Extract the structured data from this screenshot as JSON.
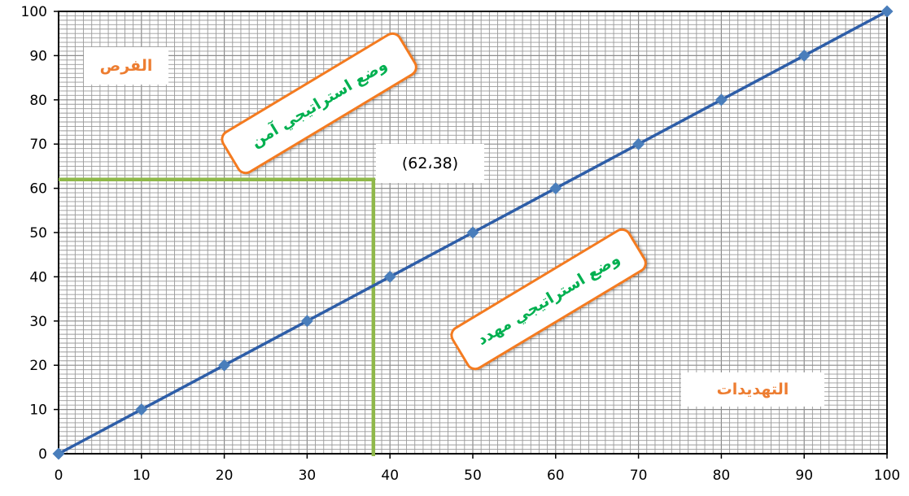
{
  "chart_data": {
    "type": "line",
    "x": [
      0,
      10,
      20,
      30,
      40,
      50,
      60,
      70,
      80,
      90,
      100
    ],
    "series": [
      {
        "values": [
          0,
          10,
          20,
          30,
          40,
          50,
          60,
          70,
          80,
          90,
          100
        ],
        "color": "#2e5ea8",
        "marker": "diamond",
        "marker_color": "#4a7ebb"
      }
    ],
    "xlim": [
      0,
      100
    ],
    "ylim": [
      0,
      100
    ],
    "x_ticks": [
      "0",
      "10",
      "20",
      "30",
      "40",
      "50",
      "60",
      "70",
      "80",
      "90",
      "100"
    ],
    "y_ticks": [
      "0",
      "10",
      "20",
      "30",
      "40",
      "50",
      "60",
      "70",
      "80",
      "90",
      "100"
    ],
    "grid": true,
    "reference_point": {
      "x": 38,
      "y": 62,
      "label": "(62،38)",
      "color": "#8fb84a"
    },
    "annotations": {
      "opportunities": "الفرص",
      "threats": "التهديدات",
      "safe_position": "وضع استراتيجي آمن",
      "threatened_position": "وضع استراتيجي مهدد"
    },
    "colors": {
      "label_orange": "#ed7d31",
      "callout_border": "#f47b20",
      "callout_text": "#00b050"
    }
  }
}
